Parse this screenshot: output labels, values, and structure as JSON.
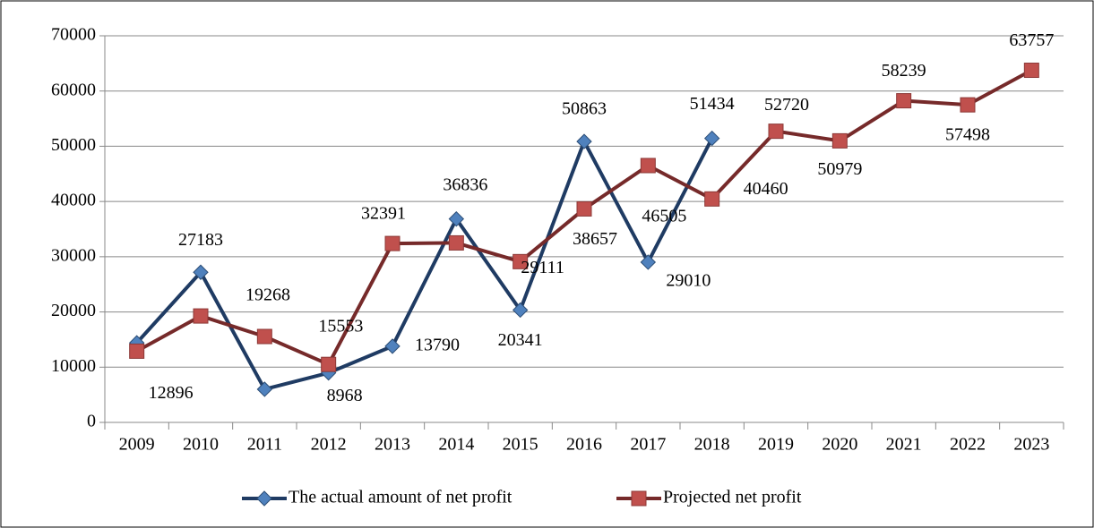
{
  "chart_data": {
    "type": "line",
    "categories": [
      "2009",
      "2010",
      "2011",
      "2012",
      "2013",
      "2014",
      "2015",
      "2016",
      "2017",
      "2018",
      "2019",
      "2020",
      "2021",
      "2022",
      "2023"
    ],
    "series": [
      {
        "name": "The actual amount of net profit",
        "color": "#4f81bd",
        "line_color": "#1f3b63",
        "marker": "diamond",
        "values": [
          14400,
          27183,
          6000,
          8968,
          13790,
          36836,
          20341,
          50863,
          29010,
          51434,
          null,
          null,
          null,
          null,
          null
        ],
        "value_labels": [
          null,
          "27183",
          null,
          "8968",
          "13790",
          "36836",
          "20341",
          "50863",
          "29010",
          "51434",
          null,
          null,
          null,
          null,
          null
        ]
      },
      {
        "name": "Projected net profit",
        "color": "#c0504d",
        "line_color": "#762a2a",
        "marker": "square",
        "values": [
          12896,
          19268,
          15553,
          10500,
          32391,
          32500,
          29111,
          38657,
          46505,
          40460,
          52720,
          50979,
          58239,
          57498,
          63757
        ],
        "value_labels": [
          "12896",
          "19268",
          "15553",
          null,
          "32391",
          null,
          "29111",
          "38657",
          "46505",
          "40460",
          "52720",
          "50979",
          "58239",
          "57498",
          "63757"
        ]
      }
    ],
    "ylim": [
      0,
      70000
    ],
    "yticks": [
      0,
      10000,
      20000,
      30000,
      40000,
      50000,
      60000,
      70000
    ],
    "grid": true,
    "legend": "bottom"
  }
}
